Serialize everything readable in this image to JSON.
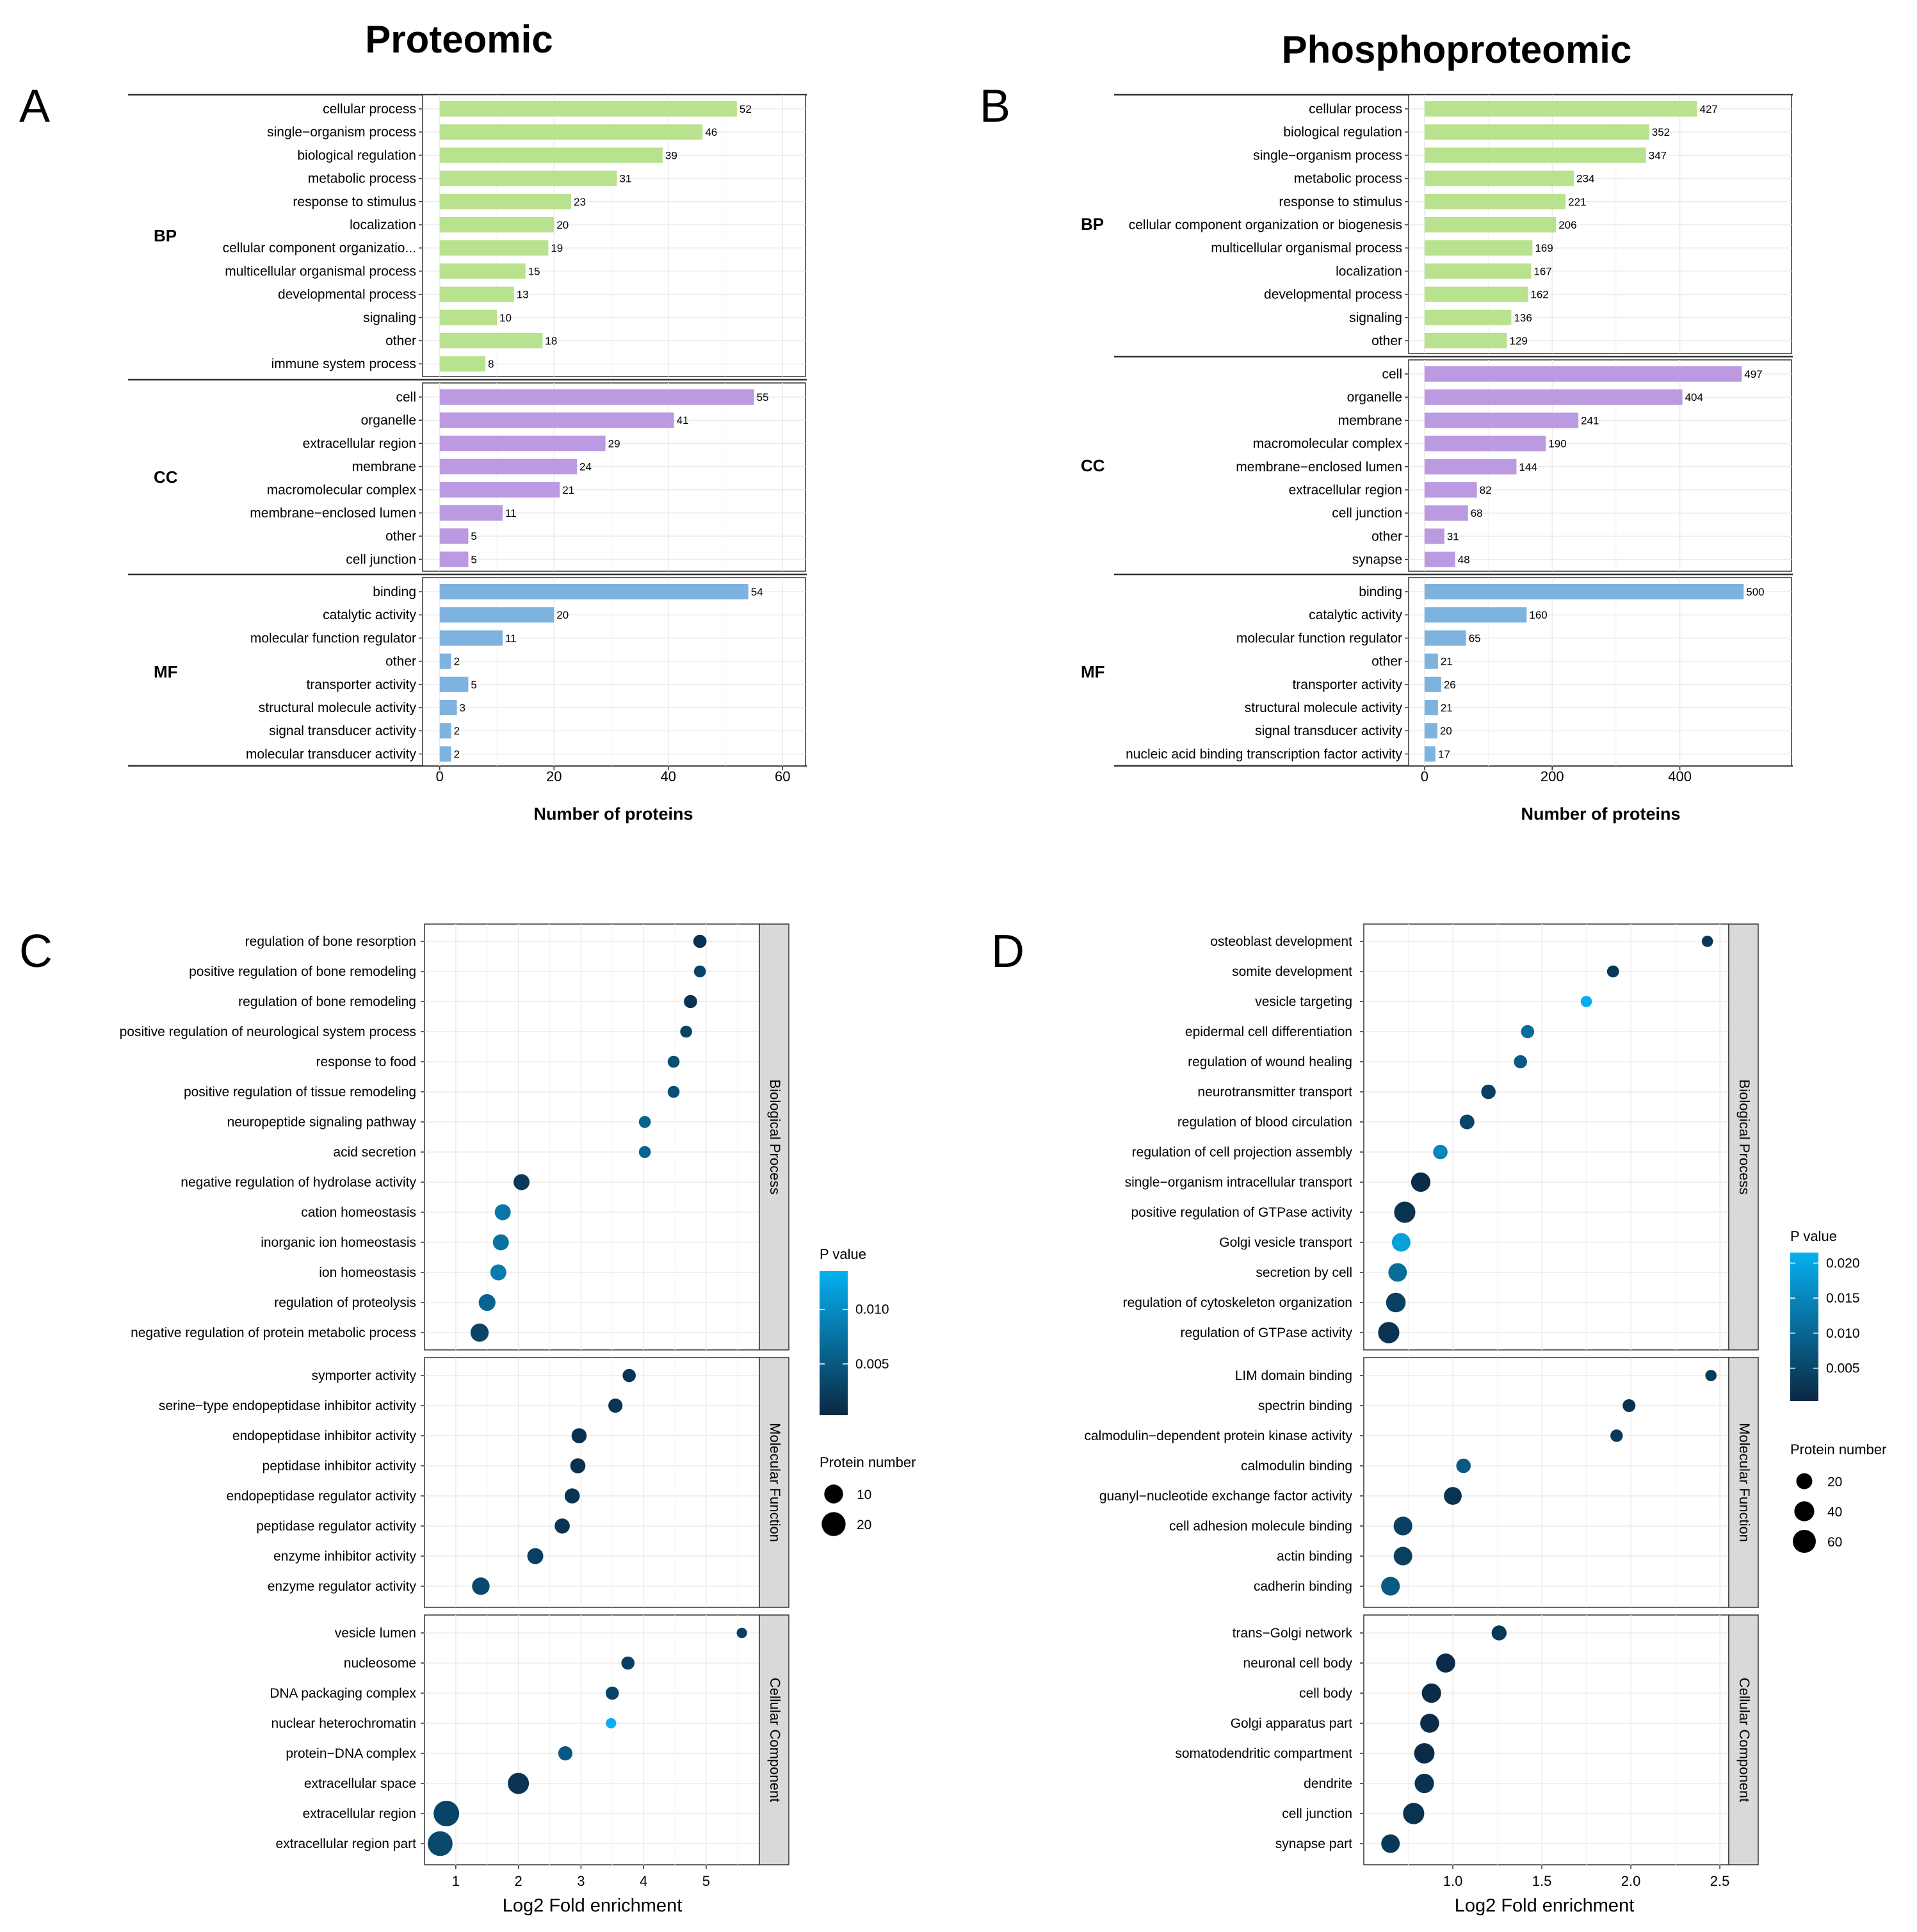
{
  "colors": {
    "bp": "#b9e28f",
    "cc": "#bc9ae1",
    "mf": "#7eb3e0",
    "p_low": "#0a2843",
    "p_high": "#06b0f0",
    "strip": "#d9d9d9"
  },
  "chart_data": [
    {
      "id": "A",
      "type": "bar",
      "orientation": "horizontal",
      "letter": "A",
      "title": "Proteomic",
      "xlabel": "Number of proteins",
      "xlim": [
        -3,
        64
      ],
      "xticks": [
        0,
        20,
        40,
        60
      ],
      "groups": [
        {
          "name": "BP",
          "color_key": "bp",
          "categories": [
            "cellular process",
            "single−organism process",
            "biological regulation",
            "metabolic process",
            "response to stimulus",
            "localization",
            "cellular component organizatio...",
            "multicellular organismal process",
            "developmental process",
            "signaling",
            "other",
            "immune system process"
          ],
          "values": [
            52,
            46,
            39,
            31,
            23,
            20,
            19,
            15,
            13,
            10,
            18,
            8
          ]
        },
        {
          "name": "CC",
          "color_key": "cc",
          "categories": [
            "cell",
            "organelle",
            "extracellular region",
            "membrane",
            "macromolecular complex",
            "membrane−enclosed lumen",
            "other",
            "cell junction"
          ],
          "values": [
            55,
            41,
            29,
            24,
            21,
            11,
            5,
            5
          ]
        },
        {
          "name": "MF",
          "color_key": "mf",
          "categories": [
            "binding",
            "catalytic activity",
            "molecular function regulator",
            "other",
            "transporter activity",
            "structural molecule activity",
            "signal transducer activity",
            "molecular transducer activity"
          ],
          "values": [
            54,
            20,
            11,
            2,
            5,
            3,
            2,
            2
          ]
        }
      ]
    },
    {
      "id": "B",
      "type": "bar",
      "orientation": "horizontal",
      "letter": "B",
      "title": "Phosphoproteomic",
      "xlabel": "Number of proteins",
      "xlim": [
        -25,
        575
      ],
      "xticks": [
        0,
        200,
        400
      ],
      "groups": [
        {
          "name": "BP",
          "color_key": "bp",
          "categories": [
            "cellular process",
            "biological regulation",
            "single−organism process",
            "metabolic process",
            "response to stimulus",
            "cellular component organization or biogenesis",
            "multicellular organismal process",
            "localization",
            "developmental process",
            "signaling",
            "other"
          ],
          "values": [
            427,
            352,
            347,
            234,
            221,
            206,
            169,
            167,
            162,
            136,
            129
          ]
        },
        {
          "name": "CC",
          "color_key": "cc",
          "categories": [
            "cell",
            "organelle",
            "membrane",
            "macromolecular complex",
            "membrane−enclosed lumen",
            "extracellular region",
            "cell junction",
            "other",
            "synapse"
          ],
          "values": [
            497,
            404,
            241,
            190,
            144,
            82,
            68,
            31,
            48
          ]
        },
        {
          "name": "MF",
          "color_key": "mf",
          "categories": [
            "binding",
            "catalytic activity",
            "molecular function regulator",
            "other",
            "transporter activity",
            "structural molecule activity",
            "signal transducer activity",
            "nucleic acid binding transcription factor activity"
          ],
          "values": [
            500,
            160,
            65,
            21,
            26,
            21,
            20,
            17
          ]
        }
      ]
    },
    {
      "id": "C",
      "type": "scatter",
      "letter": "C",
      "xlabel": "Log2 Fold enrichment",
      "xlim": [
        0.5,
        5.85
      ],
      "xticks": [
        1,
        2,
        3,
        4,
        5
      ],
      "legend": {
        "pvalue_title": "P value",
        "pvalue_range": [
          0.0003,
          0.0135
        ],
        "pvalue_ticks": [
          "0.010",
          "0.005"
        ],
        "pvalue_tick_values": [
          0.01,
          0.005
        ],
        "size_title": "Protein number",
        "size_ticks": [
          "10",
          "20"
        ],
        "size_tick_values": [
          10,
          20
        ]
      },
      "facets": [
        {
          "name": "Biological Process",
          "terms": [
            "regulation of bone resorption",
            "positive regulation of bone remodeling",
            "regulation of bone remodeling",
            "positive regulation of neurological system process",
            "response to food",
            "positive regulation of tissue remodeling",
            "neuropeptide signaling pathway",
            "acid secretion",
            "negative regulation of hydrolase activity",
            "cation homeostasis",
            "inorganic ion homeostasis",
            "ion homeostasis",
            "regulation of proteolysis",
            "negative regulation of protein metabolic process"
          ],
          "x": [
            4.9,
            4.9,
            4.75,
            4.68,
            4.48,
            4.48,
            4.02,
            4.02,
            2.05,
            1.75,
            1.72,
            1.68,
            1.5,
            1.38
          ],
          "count": [
            3,
            2,
            3,
            2,
            2,
            2,
            2,
            2,
            6,
            6,
            6,
            6,
            7,
            9
          ],
          "pvalue": [
            0.0012,
            0.003,
            0.0014,
            0.003,
            0.004,
            0.004,
            0.006,
            0.006,
            0.002,
            0.008,
            0.0075,
            0.0085,
            0.006,
            0.003
          ]
        },
        {
          "name": "Molecular Function",
          "terms": [
            "symporter activity",
            "serine−type endopeptidase inhibitor activity",
            "endopeptidase inhibitor activity",
            "peptidase inhibitor activity",
            "endopeptidase regulator activity",
            "peptidase regulator activity",
            "enzyme inhibitor activity",
            "enzyme regulator activity"
          ],
          "x": [
            3.77,
            3.55,
            2.97,
            2.95,
            2.86,
            2.7,
            2.27,
            1.4
          ],
          "count": [
            3,
            4,
            5,
            5,
            5,
            5,
            6,
            8
          ],
          "pvalue": [
            0.0015,
            0.0015,
            0.0012,
            0.0012,
            0.0015,
            0.0015,
            0.0025,
            0.0035
          ]
        },
        {
          "name": "Cellular Component",
          "terms": [
            "vesicle lumen",
            "nucleosome",
            "DNA packaging complex",
            "nuclear heterochromatin",
            "protein−DNA complex",
            "extracellular space",
            "extracellular region",
            "extracellular region part"
          ],
          "x": [
            5.57,
            3.75,
            3.5,
            3.48,
            2.75,
            2.0,
            0.85,
            0.75
          ],
          "count": [
            1,
            3,
            3,
            1,
            4,
            14,
            24,
            22
          ],
          "pvalue": [
            0.0025,
            0.0025,
            0.003,
            0.0135,
            0.005,
            0.0015,
            0.003,
            0.0035
          ]
        }
      ]
    },
    {
      "id": "D",
      "type": "scatter",
      "letter": "D",
      "xlabel": "Log2 Fold enrichment",
      "xlim": [
        0.5,
        2.55
      ],
      "xticks": [
        1.0,
        1.5,
        2.0,
        2.5
      ],
      "xtick_labels": [
        "1.0",
        "1.5",
        "2.0",
        "2.5"
      ],
      "legend": {
        "pvalue_title": "P value",
        "pvalue_range": [
          0.0003,
          0.0215
        ],
        "pvalue_ticks": [
          "0.020",
          "0.015",
          "0.010",
          "0.005"
        ],
        "pvalue_tick_values": [
          0.02,
          0.015,
          0.01,
          0.005
        ],
        "size_title": "Protein number",
        "size_ticks": [
          "20",
          "40",
          "60"
        ],
        "size_tick_values": [
          20,
          40,
          60
        ]
      },
      "facets": [
        {
          "name": "Biological Process",
          "terms": [
            "osteoblast development",
            "somite development",
            "vesicle targeting",
            "epidermal cell differentiation",
            "regulation of wound healing",
            "neurotransmitter transport",
            "regulation of blood circulation",
            "regulation of cell projection assembly",
            "single−organism intracellular transport",
            "positive regulation of GTPase activity",
            "Golgi vesicle transport",
            "secretion by cell",
            "regulation of cytoskeleton organization",
            "regulation of GTPase activity"
          ],
          "x": [
            2.43,
            1.9,
            1.75,
            1.42,
            1.38,
            1.2,
            1.08,
            0.93,
            0.82,
            0.73,
            0.71,
            0.69,
            0.68,
            0.64
          ],
          "count": [
            5,
            7,
            5,
            10,
            10,
            14,
            15,
            14,
            36,
            48,
            32,
            32,
            38,
            48
          ],
          "pvalue": [
            0.003,
            0.003,
            0.021,
            0.011,
            0.008,
            0.004,
            0.005,
            0.015,
            0.001,
            0.002,
            0.019,
            0.011,
            0.004,
            0.002
          ]
        },
        {
          "name": "Molecular Function",
          "terms": [
            "LIM domain binding",
            "spectrin binding",
            "calmodulin−dependent protein kinase activity",
            "calmodulin binding",
            "guanyl−nucleotide exchange factor activity",
            "cell adhesion molecule binding",
            "actin binding",
            "cadherin binding"
          ],
          "x": [
            2.45,
            1.99,
            1.92,
            1.06,
            1.0,
            0.72,
            0.72,
            0.65
          ],
          "count": [
            5,
            9,
            8,
            14,
            28,
            33,
            32,
            33
          ],
          "pvalue": [
            0.003,
            0.002,
            0.003,
            0.008,
            0.002,
            0.004,
            0.004,
            0.008
          ]
        },
        {
          "name": "Cellular Component",
          "terms": [
            "trans−Golgi network",
            "neuronal cell body",
            "cell body",
            "Golgi apparatus part",
            "somatodendritic compartment",
            "dendrite",
            "cell junction",
            "synapse part"
          ],
          "x": [
            1.26,
            0.96,
            0.88,
            0.87,
            0.84,
            0.84,
            0.78,
            0.65
          ],
          "count": [
            16,
            35,
            36,
            34,
            42,
            36,
            48,
            32
          ],
          "pvalue": [
            0.003,
            0.001,
            0.001,
            0.001,
            0.001,
            0.002,
            0.002,
            0.003
          ]
        }
      ]
    }
  ]
}
